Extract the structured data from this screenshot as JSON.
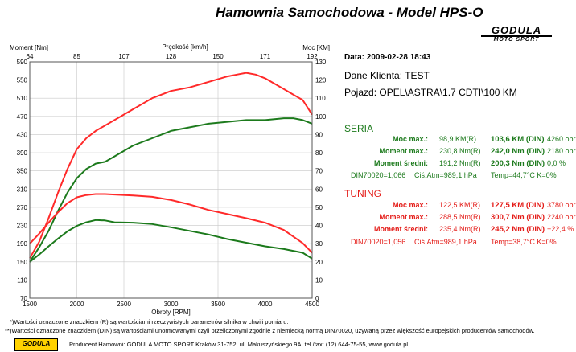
{
  "header": {
    "title": "Hamownia Samochodowa   -   Model HPS-O",
    "logo_text": "GODULA",
    "logo_sub": "MOTO SPORT"
  },
  "chart_data": {
    "type": "line",
    "x_label": "Obroty [RPM]",
    "x_range": [
      1500,
      4500
    ],
    "x_ticks": [
      1500,
      2000,
      2500,
      3000,
      3500,
      4000,
      4500
    ],
    "top_axis_label": "Prędkość [km/h]",
    "top_ticks": [
      "64",
      "85",
      "107",
      "128",
      "150",
      "171",
      "192"
    ],
    "left_axis_label": "Moment [Nm]",
    "left_range": [
      70,
      590
    ],
    "left_ticks": [
      70,
      110,
      150,
      190,
      230,
      270,
      310,
      350,
      390,
      430,
      470,
      510,
      550,
      590
    ],
    "right_axis_label": "Moc [KM]",
    "right_range": [
      0,
      130
    ],
    "right_ticks": [
      0,
      10,
      20,
      30,
      40,
      50,
      60,
      70,
      80,
      90,
      100,
      110,
      120,
      130
    ],
    "grid": true,
    "series": [
      {
        "group": "TUNING",
        "quantity": "power",
        "axis": "right",
        "color": "#ff2a2a",
        "x": [
          1500,
          1600,
          1700,
          1800,
          1900,
          2000,
          2100,
          2200,
          2400,
          2600,
          2800,
          3000,
          3200,
          3400,
          3600,
          3700,
          3800,
          3900,
          4000,
          4100,
          4200,
          4300,
          4400,
          4500
        ],
        "y": [
          22,
          31,
          44,
          58,
          71,
          82,
          88,
          92,
          98,
          104,
          110,
          114,
          116,
          119,
          122,
          123,
          124,
          123,
          121,
          118,
          115,
          112,
          109,
          101
        ]
      },
      {
        "group": "SERIA",
        "quantity": "power",
        "axis": "right",
        "color": "#1c7a1c",
        "x": [
          1500,
          1600,
          1700,
          1800,
          1900,
          2000,
          2100,
          2200,
          2300,
          2400,
          2600,
          2800,
          3000,
          3200,
          3400,
          3600,
          3800,
          4000,
          4200,
          4300,
          4400,
          4500
        ],
        "y": [
          20,
          28,
          37,
          48,
          58,
          66,
          71,
          74,
          75,
          78,
          84,
          88,
          92,
          94,
          96,
          97,
          98,
          98,
          99,
          99,
          98,
          96
        ]
      },
      {
        "group": "TUNING",
        "quantity": "torque",
        "axis": "left",
        "color": "#ff2a2a",
        "x": [
          1500,
          1600,
          1700,
          1800,
          1900,
          2000,
          2100,
          2200,
          2300,
          2400,
          2600,
          2800,
          3000,
          3200,
          3400,
          3600,
          3800,
          4000,
          4200,
          4400,
          4500
        ],
        "y": [
          190,
          212,
          236,
          259,
          279,
          292,
          297,
          299,
          299,
          298,
          296,
          293,
          286,
          276,
          264,
          255,
          246,
          236,
          220,
          191,
          170
        ]
      },
      {
        "group": "SERIA",
        "quantity": "torque",
        "axis": "left",
        "color": "#1c7a1c",
        "x": [
          1500,
          1600,
          1700,
          1800,
          1900,
          2000,
          2100,
          2200,
          2300,
          2400,
          2600,
          2800,
          3000,
          3200,
          3400,
          3600,
          3800,
          4000,
          4200,
          4400,
          4500
        ],
        "y": [
          150,
          166,
          184,
          201,
          217,
          229,
          237,
          242,
          241,
          237,
          236,
          233,
          226,
          218,
          210,
          200,
          192,
          184,
          178,
          170,
          157
        ]
      }
    ]
  },
  "info": {
    "date": "Data: 2009-02-28  18:43",
    "client": "Dane Klienta: TEST",
    "vehicle": "Pojazd: OPEL\\ASTRA\\1.7 CDTI\\100 KM"
  },
  "seria": {
    "title": "SERIA",
    "moc_label": "Moc max.:",
    "moc_r": "98,9 KM(R)",
    "moc_din": "103,6 KM (DIN)",
    "moc_obr": "4260 obr",
    "mom_label": "Moment max.:",
    "mom_r": "230,8 Nm(R)",
    "mom_din": "242,0 Nm (DIN)",
    "mom_obr": "2180 obr",
    "avg_label": "Moment średni:",
    "avg_r": "191,2 Nm(R)",
    "avg_din": "200,3 Nm (DIN)",
    "avg_pct": "0,0 %",
    "din": "DIN70020=1,066",
    "atm": "Ciś.Atm=989,1 hPa",
    "temp": "Temp=44,7°C  K=0%"
  },
  "tuning": {
    "title": "TUNING",
    "moc_label": "Moc max.:",
    "moc_r": "122,5 KM(R)",
    "moc_din": "127,5 KM (DIN)",
    "moc_obr": "3780 obr",
    "mom_label": "Moment max.:",
    "mom_r": "288,5 Nm(R)",
    "mom_din": "300,7 Nm (DIN)",
    "mom_obr": "2240 obr",
    "avg_label": "Moment średni:",
    "avg_r": "235,4 Nm(R)",
    "avg_din": "245,2 Nm (DIN)",
    "avg_pct": "+22,4 %",
    "din": "DIN70020=1,056",
    "atm": "Ciś.Atm=989,1 hPa",
    "temp": "Temp=38,7°C  K=0%"
  },
  "footer": {
    "note1": "*)Wartości oznaczone znaczkiem (R) są wartościami rzeczywistych parametrów silnika w chwili pomiaru.",
    "note2": "**)Wartości oznaczone znaczkiem (DIN) są wartościami unormowanymi czyli przeliczonymi zgodnie z niemiecką normą DIN70020, używaną przez większość europejskich producentów samochodów.",
    "producer": "Producent Hamowni: GODULA MOTO SPORT Kraków 31-752, ul. Makuszyńskiego 9A, tel./fax: (12) 644-75-55, www.godula.pl",
    "logo_text": "GODULA"
  }
}
